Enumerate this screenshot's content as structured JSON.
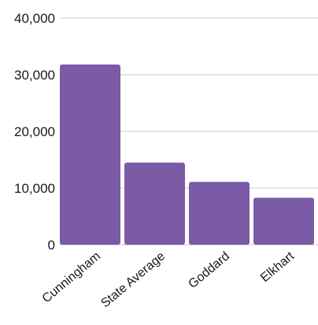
{
  "chart_data": {
    "type": "bar",
    "title": "",
    "xlabel": "",
    "ylabel": "",
    "categories": [
      "Cunningham",
      "State Average",
      "Goddard",
      "Elkhart"
    ],
    "values": [
      31800,
      14500,
      11100,
      8300
    ],
    "ylim": [
      0,
      40000
    ],
    "yticks": [
      "0",
      "10,000",
      "20,000",
      "30,000",
      "40,000"
    ],
    "ytick_values": [
      0,
      10000,
      20000,
      30000,
      40000
    ],
    "grid": true,
    "legend": "none",
    "bar_color": "#7b5ba6",
    "grid_color": "#c8c8c8"
  }
}
